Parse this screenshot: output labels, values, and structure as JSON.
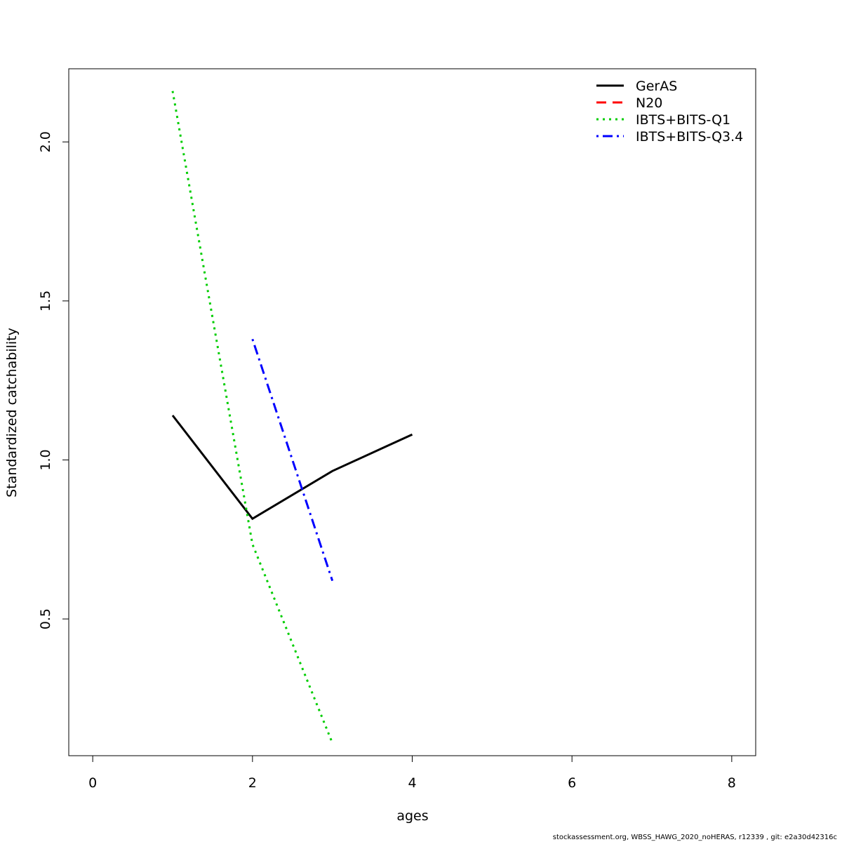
{
  "chart_data": {
    "type": "line",
    "title": "",
    "xlabel": "ages",
    "ylabel": "Standardized catchability",
    "xlim": [
      -0.3,
      8.3
    ],
    "ylim": [
      0.07,
      2.23
    ],
    "xticks": [
      0,
      2,
      4,
      6,
      8
    ],
    "yticks": [
      0.5,
      1.0,
      1.5,
      2.0
    ],
    "xtick_labels": [
      "0",
      "2",
      "4",
      "6",
      "8"
    ],
    "ytick_labels": [
      "0.5",
      "1.0",
      "1.5",
      "2.0"
    ],
    "grid": false,
    "legend_position": "top-right",
    "series": [
      {
        "name": "GerAS",
        "color": "#000000",
        "dash": "solid",
        "x": [
          1,
          2,
          3,
          4
        ],
        "y": [
          1.14,
          0.815,
          0.965,
          1.08
        ]
      },
      {
        "name": "N20",
        "color": "#ff0000",
        "dash": "dashed",
        "x": [],
        "y": []
      },
      {
        "name": "IBTS+BITS-Q1",
        "color": "#00cd00",
        "dash": "dotted",
        "x": [
          1,
          2,
          3
        ],
        "y": [
          2.16,
          0.735,
          0.11
        ]
      },
      {
        "name": "IBTS+BITS-Q3.4",
        "color": "#0000ff",
        "dash": "dotdash",
        "x": [
          2,
          3
        ],
        "y": [
          1.38,
          0.62
        ]
      }
    ]
  },
  "footer": "stockassessment.org, WBSS_HAWG_2020_noHERAS, r12339 , git: e2a30d42316c"
}
